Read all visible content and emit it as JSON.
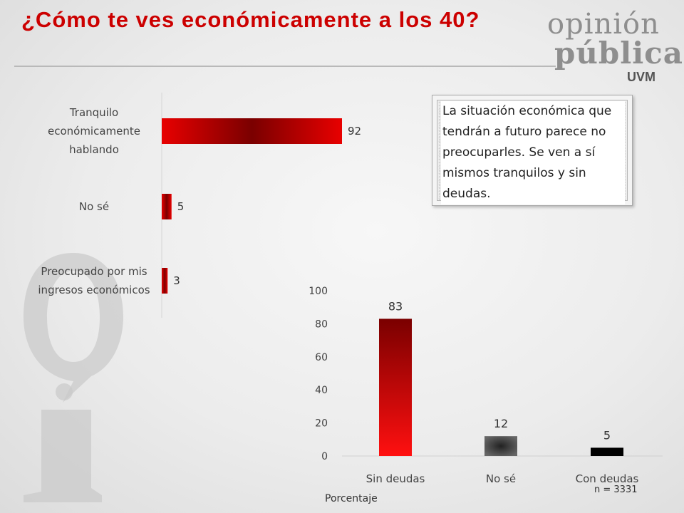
{
  "slide": {
    "title": "¿Cómo te ves económicamente a los 40?",
    "logo_line1": "opinión",
    "logo_line2": "pública",
    "logo_line3": "UVM",
    "callout": "La situación económica que tendrán a futuro parece no preocuparles. Se ven a sí mismos tranquilos y sin deudas.",
    "sample_note": "n = 3331",
    "unit_label": "Porcentaje"
  },
  "colors": {
    "title": "#cc0000",
    "bar_red": "#e00000",
    "bar_dark": "#8b0000",
    "bar_gray": "#555555",
    "bar_black": "#000000"
  },
  "chart_data": [
    {
      "type": "bar",
      "orientation": "horizontal",
      "categories": [
        "Tranquilo económicamente hablando",
        "No sé",
        "Preocupado por mis ingresos económicos"
      ],
      "category_lines": [
        [
          "Tranquilo",
          "económicamente",
          "hablando"
        ],
        [
          "No sé"
        ],
        [
          "Preocupado por mis",
          "ingresos económicos"
        ]
      ],
      "values": [
        92,
        5,
        3
      ],
      "data_labels": [
        "92",
        "5",
        "3"
      ],
      "xlim": [
        0,
        100
      ],
      "grid": false,
      "legend": "none"
    },
    {
      "type": "bar",
      "orientation": "vertical",
      "categories": [
        "Sin deudas",
        "No sé",
        "Con deudas"
      ],
      "values": [
        83,
        12,
        5
      ],
      "data_labels": [
        "83",
        "12",
        "5"
      ],
      "bar_styles": [
        "red",
        "gray",
        "black"
      ],
      "ylim": [
        0,
        100
      ],
      "yticks": [
        "0",
        "20",
        "40",
        "60",
        "80",
        "100"
      ],
      "xlabel": "",
      "ylabel": "",
      "grid": false,
      "legend": "none"
    }
  ]
}
